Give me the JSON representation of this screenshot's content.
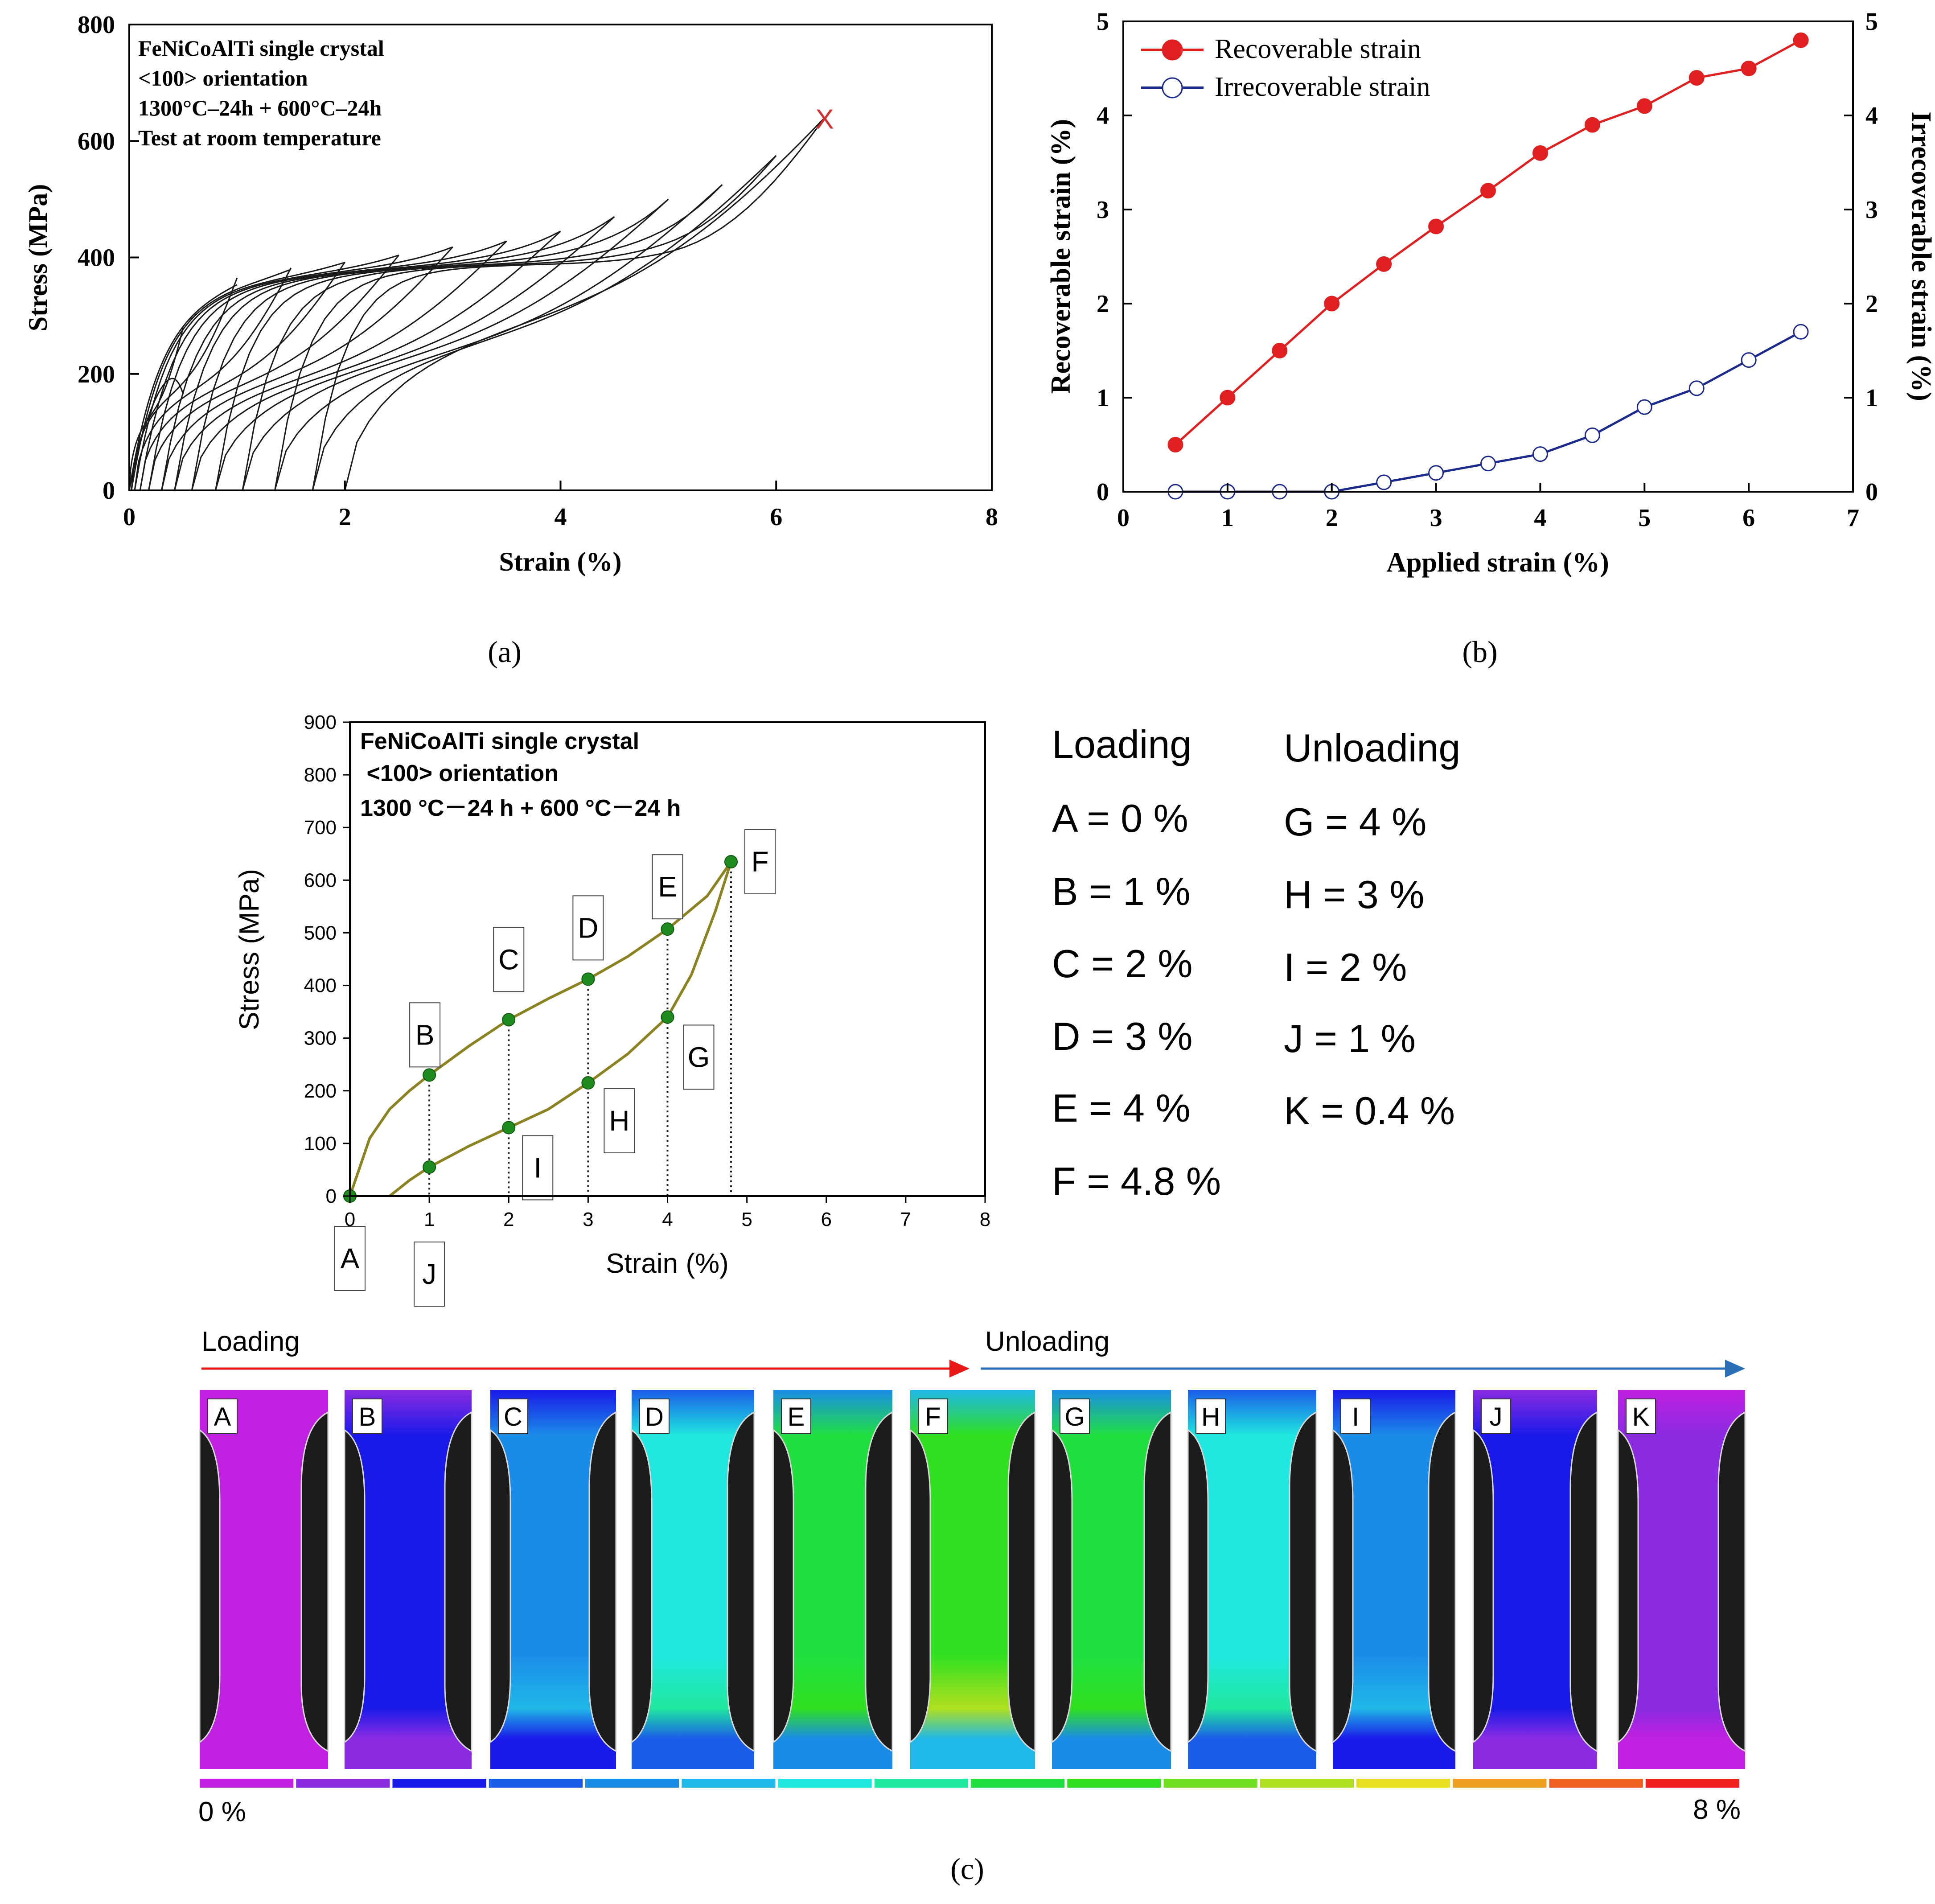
{
  "panel_captions": {
    "a": "(a)",
    "b": "(b)",
    "c": "(c)"
  },
  "chart_data": [
    {
      "id": "a",
      "type": "line",
      "title": "",
      "annotation_lines": [
        "FeNiCoAlTi  single crystal",
        "<100> orientation",
        "1300°C–24h + 600°C–24h",
        "Test at room temperature"
      ],
      "xlabel": "Strain (%)",
      "ylabel": "Stress (MPa)",
      "xlim": [
        0,
        8
      ],
      "ylim": [
        0,
        800
      ],
      "xticks": [
        0,
        2,
        4,
        6,
        8
      ],
      "yticks": [
        0,
        200,
        400,
        600,
        800
      ],
      "fracture_marker": {
        "label": "X",
        "x": 6.45,
        "y": 640,
        "color": "#d03030"
      },
      "cycles": [
        {
          "peak_strain": 0.5,
          "peak_stress": 280,
          "residual_strain": 0.0
        },
        {
          "peak_strain": 1.0,
          "peak_stress": 365,
          "residual_strain": 0.02
        },
        {
          "peak_strain": 1.5,
          "peak_stress": 382,
          "residual_strain": 0.05
        },
        {
          "peak_strain": 2.0,
          "peak_stress": 392,
          "residual_strain": 0.1
        },
        {
          "peak_strain": 2.5,
          "peak_stress": 404,
          "residual_strain": 0.18
        },
        {
          "peak_strain": 3.0,
          "peak_stress": 418,
          "residual_strain": 0.3
        },
        {
          "peak_strain": 3.5,
          "peak_stress": 428,
          "residual_strain": 0.42
        },
        {
          "peak_strain": 4.0,
          "peak_stress": 445,
          "residual_strain": 0.58
        },
        {
          "peak_strain": 4.5,
          "peak_stress": 470,
          "residual_strain": 0.8
        },
        {
          "peak_strain": 5.0,
          "peak_stress": 500,
          "residual_strain": 1.05
        },
        {
          "peak_strain": 5.5,
          "peak_stress": 525,
          "residual_strain": 1.35
        },
        {
          "peak_strain": 6.0,
          "peak_stress": 575,
          "residual_strain": 1.7
        },
        {
          "peak_strain": 6.45,
          "peak_stress": 640,
          "residual_strain": 2.0
        }
      ]
    },
    {
      "id": "b",
      "type": "line",
      "xlabel": "Applied strain (%)",
      "ylabel": "Recoverable strain (%)",
      "y2label": "Irrecoverable strain (%)",
      "xlim": [
        0,
        7
      ],
      "ylim": [
        0,
        5
      ],
      "y2lim": [
        0,
        5
      ],
      "xticks": [
        0,
        1,
        2,
        3,
        4,
        5,
        6,
        7
      ],
      "yticks": [
        0,
        1,
        2,
        3,
        4,
        5
      ],
      "x": [
        0.5,
        1.0,
        1.5,
        2.0,
        2.5,
        3.0,
        3.5,
        4.0,
        4.5,
        5.0,
        5.5,
        6.0,
        6.5
      ],
      "series": [
        {
          "name": "Recoverable strain",
          "axis": "left",
          "color": "#e02020",
          "marker": "filled-circle",
          "values": [
            0.5,
            1.0,
            1.5,
            2.0,
            2.42,
            2.82,
            3.2,
            3.6,
            3.9,
            4.1,
            4.4,
            4.5,
            4.8
          ]
        },
        {
          "name": "Irrecoverable strain",
          "axis": "right",
          "color": "#1c2a8c",
          "marker": "open-circle",
          "values": [
            0.0,
            0.0,
            0.0,
            0.0,
            0.1,
            0.2,
            0.3,
            0.4,
            0.6,
            0.9,
            1.1,
            1.4,
            1.7
          ]
        }
      ],
      "legend_position": "top-left"
    },
    {
      "id": "c",
      "type": "line",
      "annotation_lines": [
        "FeNiCoAlTi single crystal",
        " <100> orientation",
        "1300 °C－24 h + 600 °C－24 h"
      ],
      "xlabel": "Strain (%)",
      "ylabel": "Stress (MPa)",
      "xlim": [
        0,
        8
      ],
      "ylim": [
        0,
        900
      ],
      "xticks": [
        0,
        1,
        2,
        3,
        4,
        5,
        6,
        7,
        8
      ],
      "yticks": [
        0,
        100,
        200,
        300,
        400,
        500,
        600,
        700,
        800,
        900
      ],
      "curve_color": "#8b8322",
      "point_color": "#1f8a1f",
      "loading_curve": {
        "x": [
          0,
          0.25,
          0.5,
          0.75,
          1,
          1.5,
          2,
          2.5,
          3,
          3.5,
          4,
          4.5,
          4.8
        ],
        "y": [
          0,
          110,
          165,
          200,
          230,
          285,
          335,
          375,
          412,
          455,
          507,
          570,
          635
        ]
      },
      "unloading_curve": {
        "x": [
          4.8,
          4.6,
          4.3,
          4,
          3.5,
          3,
          2.5,
          2,
          1.5,
          1,
          0.75,
          0.5
        ],
        "y": [
          635,
          540,
          420,
          340,
          270,
          215,
          165,
          130,
          95,
          55,
          30,
          0
        ]
      },
      "points": [
        {
          "label": "A",
          "x": 0,
          "y": 0
        },
        {
          "label": "B",
          "x": 1,
          "y": 230
        },
        {
          "label": "C",
          "x": 2,
          "y": 335
        },
        {
          "label": "D",
          "x": 3,
          "y": 412
        },
        {
          "label": "E",
          "x": 4,
          "y": 507
        },
        {
          "label": "F",
          "x": 4.8,
          "y": 635
        },
        {
          "label": "G",
          "x": 4,
          "y": 340
        },
        {
          "label": "H",
          "x": 3,
          "y": 215
        },
        {
          "label": "I",
          "x": 2,
          "y": 130
        },
        {
          "label": "J",
          "x": 1,
          "y": 55
        }
      ]
    }
  ],
  "strain_table": {
    "loading_header": "Loading",
    "unloading_header": "Unloading",
    "loading": [
      "A = 0 %",
      "B = 1 %",
      "C = 2 %",
      "D = 3 %",
      "E = 4 %",
      "F = 4.8 %"
    ],
    "unloading": [
      "G = 4 %",
      "H = 3 %",
      "I = 2 %",
      "J = 1 %",
      "K = 0.4 %"
    ]
  },
  "dic_strip": {
    "loading_label": "Loading",
    "unloading_label": "Unloading",
    "loading_color": "#e81818",
    "unloading_color": "#2a6fb8",
    "frames": [
      {
        "label": "A",
        "strain": 0.0
      },
      {
        "label": "B",
        "strain": 1.0
      },
      {
        "label": "C",
        "strain": 2.0
      },
      {
        "label": "D",
        "strain": 3.0
      },
      {
        "label": "E",
        "strain": 4.0
      },
      {
        "label": "F",
        "strain": 4.8
      },
      {
        "label": "G",
        "strain": 4.0
      },
      {
        "label": "H",
        "strain": 3.0
      },
      {
        "label": "I",
        "strain": 2.0
      },
      {
        "label": "J",
        "strain": 1.0
      },
      {
        "label": "K",
        "strain": 0.4
      }
    ],
    "colorbar_min_label": "0 %",
    "colorbar_max_label": "8 %",
    "colorbar_colors": [
      "#c020e0",
      "#8a2be2",
      "#1a1ae8",
      "#1a5ce8",
      "#1a8ce8",
      "#20b8e8",
      "#20e8e0",
      "#20e8a0",
      "#20e040",
      "#30e020",
      "#70e020",
      "#b0e020",
      "#e8e020",
      "#f0a020",
      "#f06020",
      "#f02020"
    ]
  }
}
